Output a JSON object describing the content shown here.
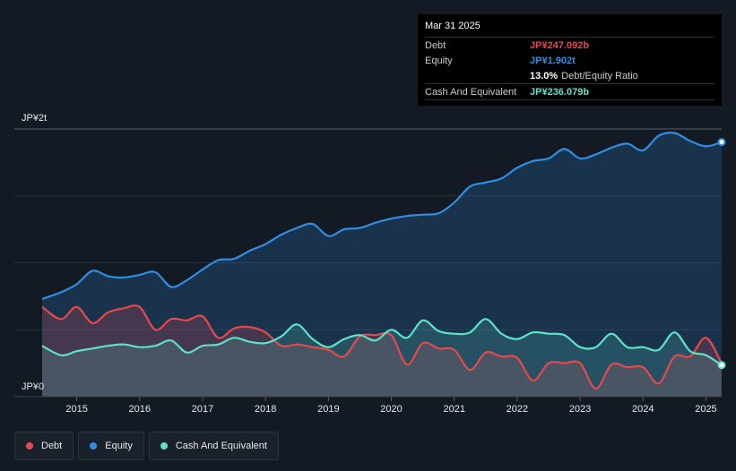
{
  "tooltip": {
    "date": "Mar 31 2025",
    "debt_label": "Debt",
    "debt_value": "JP¥247.092b",
    "equity_label": "Equity",
    "equity_value": "JP¥1.902t",
    "ratio_value": "13.0%",
    "ratio_label": "Debt/Equity Ratio",
    "cash_label": "Cash And Equivalent",
    "cash_value": "JP¥236.079b"
  },
  "legend": {
    "debt": "Debt",
    "equity": "Equity",
    "cash": "Cash And Equivalent"
  },
  "colors": {
    "debt": "#e5484d",
    "equity": "#2f8ee3",
    "cash": "#5fe0c8",
    "background": "#141a23"
  },
  "chart_data": {
    "type": "area",
    "title": "",
    "y_unit_label_top": "JP¥2t",
    "y_unit_label_bottom": "JP¥0",
    "ylim": [
      0,
      2.0
    ],
    "xlim": [
      2014.45,
      2025.25
    ],
    "x_ticks": [
      2015,
      2016,
      2017,
      2018,
      2019,
      2020,
      2021,
      2022,
      2023,
      2024,
      2025
    ],
    "x_tick_labels": [
      "2015",
      "2016",
      "2017",
      "2018",
      "2019",
      "2020",
      "2021",
      "2022",
      "2023",
      "2024",
      "2025"
    ],
    "series": [
      {
        "name": "Equity",
        "x": [
          2014.45,
          2014.75,
          2015.0,
          2015.25,
          2015.5,
          2015.75,
          2016.0,
          2016.25,
          2016.5,
          2016.75,
          2017.0,
          2017.25,
          2017.5,
          2017.75,
          2018.0,
          2018.25,
          2018.5,
          2018.75,
          2019.0,
          2019.25,
          2019.5,
          2019.75,
          2020.0,
          2020.25,
          2020.5,
          2020.75,
          2021.0,
          2021.25,
          2021.5,
          2021.75,
          2022.0,
          2022.25,
          2022.5,
          2022.75,
          2023.0,
          2023.25,
          2023.5,
          2023.75,
          2024.0,
          2024.25,
          2024.5,
          2024.75,
          2025.0,
          2025.25
        ],
        "values": [
          0.73,
          0.78,
          0.84,
          0.94,
          0.9,
          0.89,
          0.91,
          0.93,
          0.82,
          0.87,
          0.95,
          1.02,
          1.03,
          1.09,
          1.14,
          1.21,
          1.26,
          1.29,
          1.2,
          1.25,
          1.26,
          1.3,
          1.33,
          1.35,
          1.36,
          1.37,
          1.45,
          1.57,
          1.6,
          1.63,
          1.71,
          1.76,
          1.78,
          1.85,
          1.78,
          1.81,
          1.86,
          1.89,
          1.84,
          1.95,
          1.97,
          1.91,
          1.87,
          1.902
        ]
      },
      {
        "name": "Debt",
        "x": [
          2014.45,
          2014.75,
          2015.0,
          2015.25,
          2015.5,
          2015.75,
          2016.0,
          2016.25,
          2016.5,
          2016.75,
          2017.0,
          2017.25,
          2017.5,
          2017.75,
          2018.0,
          2018.25,
          2018.5,
          2018.75,
          2019.0,
          2019.25,
          2019.5,
          2019.75,
          2020.0,
          2020.25,
          2020.5,
          2020.75,
          2021.0,
          2021.25,
          2021.5,
          2021.75,
          2022.0,
          2022.25,
          2022.5,
          2022.75,
          2023.0,
          2023.25,
          2023.5,
          2023.75,
          2024.0,
          2024.25,
          2024.5,
          2024.75,
          2025.0,
          2025.25
        ],
        "values": [
          0.67,
          0.58,
          0.67,
          0.55,
          0.63,
          0.66,
          0.67,
          0.5,
          0.58,
          0.57,
          0.6,
          0.44,
          0.51,
          0.52,
          0.48,
          0.38,
          0.39,
          0.37,
          0.35,
          0.3,
          0.45,
          0.46,
          0.46,
          0.24,
          0.4,
          0.36,
          0.35,
          0.2,
          0.33,
          0.3,
          0.29,
          0.12,
          0.25,
          0.25,
          0.25,
          0.06,
          0.24,
          0.22,
          0.22,
          0.1,
          0.3,
          0.3,
          0.44,
          0.247
        ]
      },
      {
        "name": "Cash And Equivalent",
        "x": [
          2014.45,
          2014.75,
          2015.0,
          2015.25,
          2015.5,
          2015.75,
          2016.0,
          2016.25,
          2016.5,
          2016.75,
          2017.0,
          2017.25,
          2017.5,
          2017.75,
          2018.0,
          2018.25,
          2018.5,
          2018.75,
          2019.0,
          2019.25,
          2019.5,
          2019.75,
          2020.0,
          2020.25,
          2020.5,
          2020.75,
          2021.0,
          2021.25,
          2021.5,
          2021.75,
          2022.0,
          2022.25,
          2022.5,
          2022.75,
          2023.0,
          2023.25,
          2023.5,
          2023.75,
          2024.0,
          2024.25,
          2024.5,
          2024.75,
          2025.0,
          2025.25
        ],
        "values": [
          0.38,
          0.31,
          0.34,
          0.36,
          0.38,
          0.39,
          0.37,
          0.38,
          0.42,
          0.33,
          0.38,
          0.39,
          0.44,
          0.41,
          0.4,
          0.45,
          0.54,
          0.43,
          0.37,
          0.43,
          0.46,
          0.42,
          0.5,
          0.44,
          0.57,
          0.49,
          0.47,
          0.48,
          0.58,
          0.47,
          0.43,
          0.48,
          0.47,
          0.46,
          0.37,
          0.37,
          0.47,
          0.37,
          0.37,
          0.35,
          0.48,
          0.34,
          0.31,
          0.236
        ]
      }
    ]
  }
}
